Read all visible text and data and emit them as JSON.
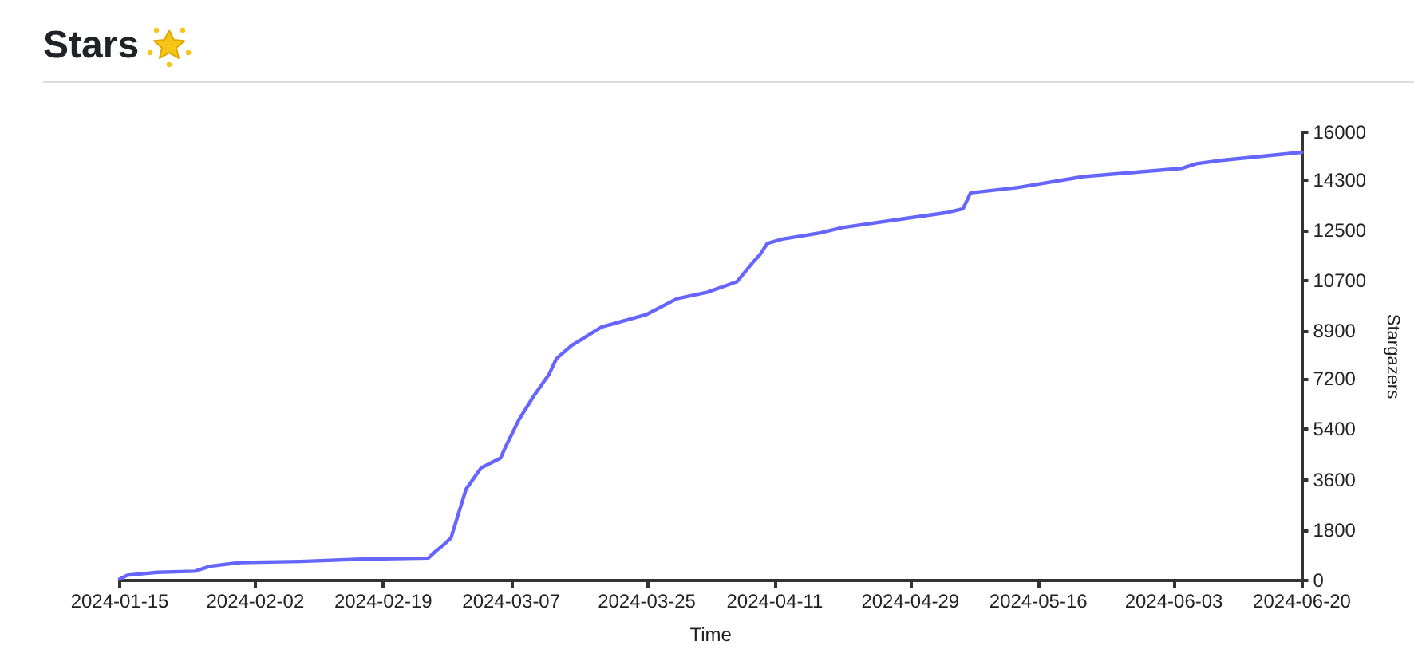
{
  "chart_data": {
    "type": "line",
    "title": "Stars",
    "xlabel": "Time",
    "ylabel": "Stargazers",
    "x": [
      "2024-01-15",
      "2024-01-16",
      "2024-01-20",
      "2024-01-25",
      "2024-01-27",
      "2024-01-31",
      "2024-02-08",
      "2024-02-16",
      "2024-02-25",
      "2024-02-26",
      "2024-02-27",
      "2024-02-28",
      "2024-03-01",
      "2024-03-02",
      "2024-03-03",
      "2024-03-05T14:00",
      "2024-03-06T08:00",
      "2024-03-08",
      "2024-03-10",
      "2024-03-12",
      "2024-03-13",
      "2024-03-15",
      "2024-03-19",
      "2024-03-25",
      "2024-03-29",
      "2024-04-02",
      "2024-04-06",
      "2024-04-08",
      "2024-04-09",
      "2024-04-10",
      "2024-04-12",
      "2024-04-17",
      "2024-04-20",
      "2024-04-28",
      "2024-05-04",
      "2024-05-06",
      "2024-05-07",
      "2024-05-13",
      "2024-05-22",
      "2024-06-04",
      "2024-06-06",
      "2024-06-09",
      "2024-06-20"
    ],
    "series": [
      {
        "color": "#6666ff",
        "values": [
          50,
          190,
          290,
          330,
          510,
          640,
          680,
          760,
          800,
          1050,
          1270,
          1520,
          3260,
          3640,
          4020,
          4370,
          4820,
          5730,
          6590,
          7350,
          7920,
          8390,
          9050,
          9500,
          10060,
          10290,
          10670,
          11330,
          11620,
          12030,
          12190,
          12410,
          12600,
          12910,
          13140,
          13270,
          13840,
          14020,
          14420,
          14710,
          14880,
          14990,
          15290
        ]
      }
    ],
    "xlim": [
      "2024-01-15",
      "2024-06-20"
    ],
    "xticks": [
      "2024-01-15",
      "2024-02-02",
      "2024-02-19",
      "2024-03-07",
      "2024-03-25",
      "2024-04-11",
      "2024-04-29",
      "2024-05-16",
      "2024-06-03",
      "2024-06-20"
    ],
    "ylim": [
      0,
      16000
    ],
    "yticks": [
      0,
      1800,
      3600,
      5400,
      7200,
      8900,
      10700,
      12500,
      14300,
      16000
    ]
  }
}
